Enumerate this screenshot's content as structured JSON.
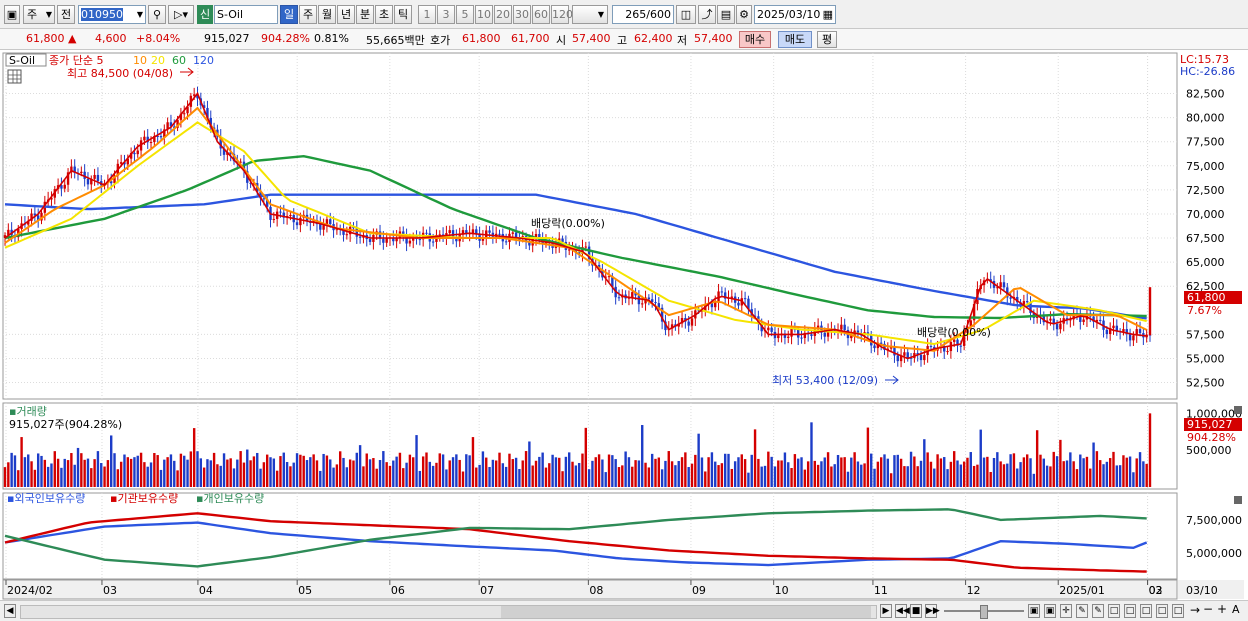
{
  "toolbar": {
    "market": "주",
    "prev_label": "전",
    "code": "010950",
    "new_badge": "신",
    "name": "S-Oil",
    "periods": [
      "일",
      "주",
      "월",
      "년",
      "분",
      "초",
      "틱"
    ],
    "intervals": [
      "1",
      "3",
      "5",
      "10",
      "20",
      "30",
      "60",
      "120"
    ],
    "count": "265",
    "count_max": "/600",
    "date": "2025/03/10"
  },
  "quote": {
    "price": "61,800",
    "change": "4,600",
    "change_pct": "+8.04%",
    "volume": "915,027",
    "vol_ratio": "904.28%",
    "turnover": "0.81%",
    "amount": "55,665백만",
    "bid_label": "호가",
    "bid1": "61,800",
    "bid2": "61,700",
    "open_label": "시",
    "open": "57,400",
    "high_label": "고",
    "high": "62,400",
    "low_label": "저",
    "low": "57,400",
    "buy_button": "매수",
    "sell_button": "매도",
    "eval_button": "평"
  },
  "legend": {
    "stock": "S-Oil",
    "ma_label": "종가 단순 5",
    "ma_periods": [
      "10",
      "20",
      "60",
      "120"
    ],
    "high_note": "최고 84,500 (04/08)",
    "low_note": "최저 53,400 (12/09)",
    "dividend1": "배당락(0.00%)",
    "dividend2": "배당락(0.00%)",
    "lc": "LC:15.73",
    "hc": "HC:-26.86",
    "current_price": "61,800",
    "current_pct": "7.67%"
  },
  "volume_panel": {
    "title": "거래량",
    "value": "915,027주(904.28%)",
    "right_value": "915,027",
    "right_pct": "904.28%"
  },
  "holders_panel": {
    "foreign": "외국인보유수량",
    "inst": "기관보유수량",
    "indiv": "개인보유수량"
  },
  "colors": {
    "ma5": "#d40000",
    "ma10": "#ff8c00",
    "ma20": "#f5e400",
    "ma60": "#1f9a3c",
    "ma120": "#2c55e0",
    "up": "#d40000",
    "down": "#1c3cc8",
    "foreign": "#2c55e0",
    "inst": "#d40000",
    "indiv": "#2e8b57"
  },
  "chart_data": {
    "type": "line",
    "x_tick_labels": [
      "2024/02",
      "03",
      "04",
      "05",
      "06",
      "07",
      "08",
      "09",
      "10",
      "11",
      "12",
      "2025/01",
      "02",
      "03",
      "03/10"
    ],
    "price_ticks": [
      "82,500",
      "80,000",
      "77,500",
      "75,000",
      "72,500",
      "70,000",
      "67,500",
      "65,000",
      "62,500",
      "57,500",
      "55,000",
      "52,500"
    ],
    "volume_ticks": [
      "1,000,000",
      "500,000"
    ],
    "holder_ticks": [
      "7,500,000",
      "5,000,000"
    ],
    "price_range": [
      51000,
      86500
    ],
    "series": [
      {
        "name": "종가 단순 5",
        "points": [
          [
            0,
            67500
          ],
          [
            10,
            70000
          ],
          [
            20,
            74500
          ],
          [
            30,
            73000
          ],
          [
            40,
            77000
          ],
          [
            50,
            79000
          ],
          [
            58,
            82500
          ],
          [
            64,
            77500
          ],
          [
            72,
            74500
          ],
          [
            80,
            70000
          ],
          [
            95,
            69000
          ],
          [
            110,
            67500
          ],
          [
            125,
            67500
          ],
          [
            140,
            68000
          ],
          [
            155,
            67500
          ],
          [
            165,
            67000
          ],
          [
            175,
            66000
          ],
          [
            185,
            61500
          ],
          [
            195,
            61000
          ],
          [
            200,
            58000
          ],
          [
            208,
            59500
          ],
          [
            215,
            61500
          ],
          [
            222,
            61000
          ],
          [
            230,
            57500
          ],
          [
            240,
            57500
          ],
          [
            250,
            58000
          ],
          [
            258,
            57500
          ],
          [
            265,
            56000
          ],
          [
            272,
            55000
          ],
          [
            280,
            56000
          ],
          [
            288,
            56500
          ],
          [
            295,
            63500
          ],
          [
            305,
            61000
          ],
          [
            315,
            58500
          ],
          [
            325,
            59500
          ],
          [
            333,
            58000
          ],
          [
            340,
            57500
          ],
          [
            345,
            57300
          ]
        ]
      },
      {
        "name": "10",
        "points": [
          [
            0,
            67000
          ],
          [
            15,
            70500
          ],
          [
            30,
            73000
          ],
          [
            45,
            77000
          ],
          [
            58,
            81000
          ],
          [
            68,
            76500
          ],
          [
            80,
            71000
          ],
          [
            100,
            68500
          ],
          [
            125,
            67500
          ],
          [
            150,
            67500
          ],
          [
            170,
            66500
          ],
          [
            185,
            63000
          ],
          [
            200,
            59500
          ],
          [
            215,
            61000
          ],
          [
            230,
            58500
          ],
          [
            250,
            58000
          ],
          [
            265,
            56300
          ],
          [
            280,
            55800
          ],
          [
            292,
            58500
          ],
          [
            305,
            62500
          ],
          [
            320,
            59500
          ],
          [
            335,
            59500
          ],
          [
            345,
            57800
          ]
        ]
      },
      {
        "name": "20",
        "points": [
          [
            0,
            66500
          ],
          [
            20,
            69500
          ],
          [
            40,
            75000
          ],
          [
            58,
            79500
          ],
          [
            72,
            76500
          ],
          [
            85,
            71500
          ],
          [
            110,
            68000
          ],
          [
            140,
            67500
          ],
          [
            165,
            67500
          ],
          [
            180,
            65000
          ],
          [
            200,
            61000
          ],
          [
            220,
            59000
          ],
          [
            240,
            58000
          ],
          [
            260,
            57500
          ],
          [
            280,
            56500
          ],
          [
            295,
            58000
          ],
          [
            310,
            61000
          ],
          [
            330,
            60000
          ],
          [
            345,
            58800
          ]
        ]
      },
      {
        "name": "60",
        "points": [
          [
            0,
            67500
          ],
          [
            30,
            69500
          ],
          [
            55,
            72500
          ],
          [
            75,
            75500
          ],
          [
            90,
            76000
          ],
          [
            110,
            74500
          ],
          [
            135,
            70500
          ],
          [
            160,
            67500
          ],
          [
            185,
            65500
          ],
          [
            215,
            63500
          ],
          [
            240,
            61500
          ],
          [
            260,
            60000
          ],
          [
            280,
            59300
          ],
          [
            300,
            59200
          ],
          [
            320,
            59600
          ],
          [
            345,
            59400
          ]
        ]
      },
      {
        "name": "120",
        "points": [
          [
            0,
            71000
          ],
          [
            25,
            70500
          ],
          [
            60,
            71000
          ],
          [
            80,
            72000
          ],
          [
            110,
            72000
          ],
          [
            160,
            72000
          ],
          [
            190,
            70000
          ],
          [
            220,
            67000
          ],
          [
            250,
            64000
          ],
          [
            280,
            62000
          ],
          [
            305,
            60500
          ],
          [
            325,
            60200
          ],
          [
            345,
            59100
          ]
        ]
      }
    ],
    "volume_range": [
      0,
      1100000
    ],
    "holders": [
      {
        "name": "외국인보유수량",
        "points": [
          [
            0,
            5800
          ],
          [
            30,
            7000
          ],
          [
            58,
            7300
          ],
          [
            80,
            6500
          ],
          [
            110,
            5900
          ],
          [
            140,
            5500
          ],
          [
            165,
            5200
          ],
          [
            185,
            4600
          ],
          [
            205,
            4300
          ],
          [
            230,
            4100
          ],
          [
            260,
            4500
          ],
          [
            285,
            4600
          ],
          [
            300,
            5900
          ],
          [
            320,
            5700
          ],
          [
            340,
            5400
          ],
          [
            345,
            5900
          ]
        ]
      },
      {
        "name": "기관보유수량",
        "points": [
          [
            0,
            5800
          ],
          [
            25,
            7300
          ],
          [
            58,
            8000
          ],
          [
            80,
            7400
          ],
          [
            110,
            7100
          ],
          [
            140,
            6800
          ],
          [
            170,
            5900
          ],
          [
            200,
            5200
          ],
          [
            230,
            4800
          ],
          [
            260,
            4600
          ],
          [
            285,
            4500
          ],
          [
            305,
            3900
          ],
          [
            330,
            3700
          ],
          [
            345,
            3600
          ]
        ]
      },
      {
        "name": "개인보유수량",
        "points": [
          [
            0,
            6300
          ],
          [
            30,
            4500
          ],
          [
            58,
            4000
          ],
          [
            80,
            4700
          ],
          [
            110,
            6000
          ],
          [
            140,
            6900
          ],
          [
            170,
            6800
          ],
          [
            200,
            7500
          ],
          [
            230,
            8000
          ],
          [
            260,
            8200
          ],
          [
            285,
            8300
          ],
          [
            300,
            7500
          ],
          [
            330,
            7800
          ],
          [
            345,
            7600
          ]
        ]
      }
    ],
    "holders_range": [
      3200,
      9000
    ]
  }
}
